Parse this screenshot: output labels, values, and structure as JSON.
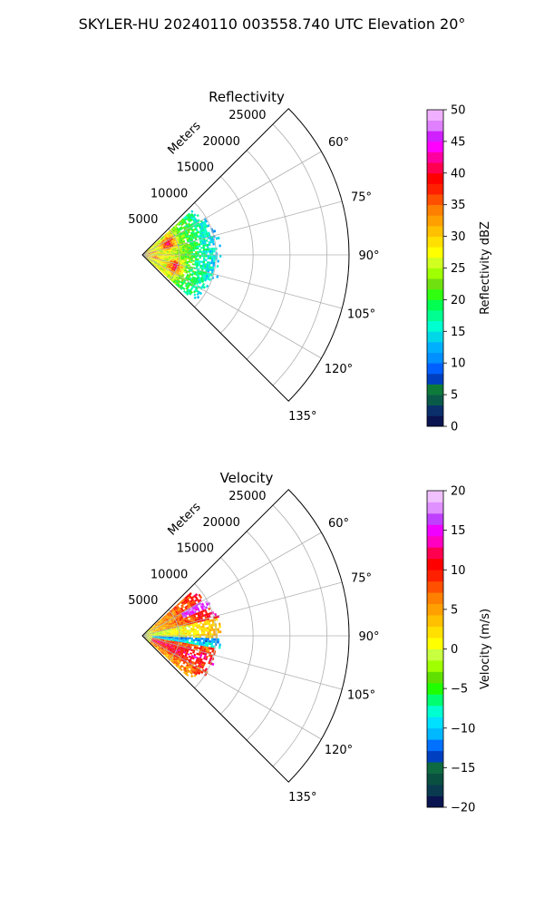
{
  "figure_title": "SKYLER-HU  20240110  003558.740 UTC Elevation 20°",
  "chart_data": [
    {
      "type": "heatmap",
      "subtype": "polar-sector (radar PPI)",
      "title": "Reflectivity",
      "radial_axis_label": "Meters",
      "radial_ticks": [
        "5000",
        "10000",
        "15000",
        "20000",
        "25000"
      ],
      "radial_range": [
        0,
        28000
      ],
      "angle_ticks": [
        "60°",
        "75°",
        "90°",
        "105°",
        "120°",
        "135°"
      ],
      "angle_range_deg": [
        45,
        135
      ],
      "grid": true,
      "colorbar": {
        "label": "Reflectivity dBZ",
        "range": [
          0,
          50
        ],
        "ticks": [
          "0",
          "5",
          "10",
          "15",
          "20",
          "25",
          "30",
          "35",
          "40",
          "45",
          "50"
        ],
        "colors": [
          "#0a1450",
          "#0a2f6a",
          "#0a5a4a",
          "#0e7a3a",
          "#0040c0",
          "#0060ff",
          "#0090ff",
          "#00b0ff",
          "#00d8e8",
          "#00ffd0",
          "#00ff90",
          "#00ff50",
          "#30ff10",
          "#70e010",
          "#a0ff00",
          "#d0ff20",
          "#ffff00",
          "#ffe000",
          "#ffc000",
          "#ffa000",
          "#ff8000",
          "#ff5000",
          "#ff2000",
          "#ff0000",
          "#ff0050",
          "#ff00a0",
          "#ff00ff",
          "#d020ff",
          "#e080ff",
          "#f0b0ff"
        ]
      },
      "data_extent_m": 11000,
      "data_features": [
        {
          "angle_deg": 66,
          "range_m": 3800,
          "value": 37
        },
        {
          "angle_deg": 110,
          "range_m": 4800,
          "value": 37
        },
        {
          "angle_deg": 102,
          "range_m": 1800,
          "value": 37
        }
      ]
    },
    {
      "type": "heatmap",
      "subtype": "polar-sector (radar PPI)",
      "title": "Velocity",
      "radial_axis_label": "Meters",
      "radial_ticks": [
        "5000",
        "10000",
        "15000",
        "20000",
        "25000"
      ],
      "radial_range": [
        0,
        28000
      ],
      "angle_ticks": [
        "60°",
        "75°",
        "90°",
        "105°",
        "120°",
        "135°"
      ],
      "angle_range_deg": [
        45,
        135
      ],
      "grid": true,
      "colorbar": {
        "label": "Velocity (m/s)",
        "range": [
          -20,
          20
        ],
        "ticks": [
          "−20",
          "−15",
          "−10",
          "−5",
          "0",
          "5",
          "10",
          "15",
          "20"
        ],
        "colors": [
          "#0a1450",
          "#0a3a50",
          "#0a5040",
          "#0e6a40",
          "#0040c0",
          "#0070ff",
          "#00b8ff",
          "#00e0ff",
          "#00ffd0",
          "#00ff70",
          "#20ff00",
          "#60e000",
          "#a0ff00",
          "#c8ff40",
          "#ffff00",
          "#ffe000",
          "#ffc000",
          "#ffa000",
          "#ff8000",
          "#ff5000",
          "#ff2000",
          "#ff0000",
          "#ff0050",
          "#ff00c0",
          "#f000ff",
          "#c040ff",
          "#e090ff",
          "#f0c0ff"
        ]
      },
      "data_extent_m": 11000
    }
  ]
}
